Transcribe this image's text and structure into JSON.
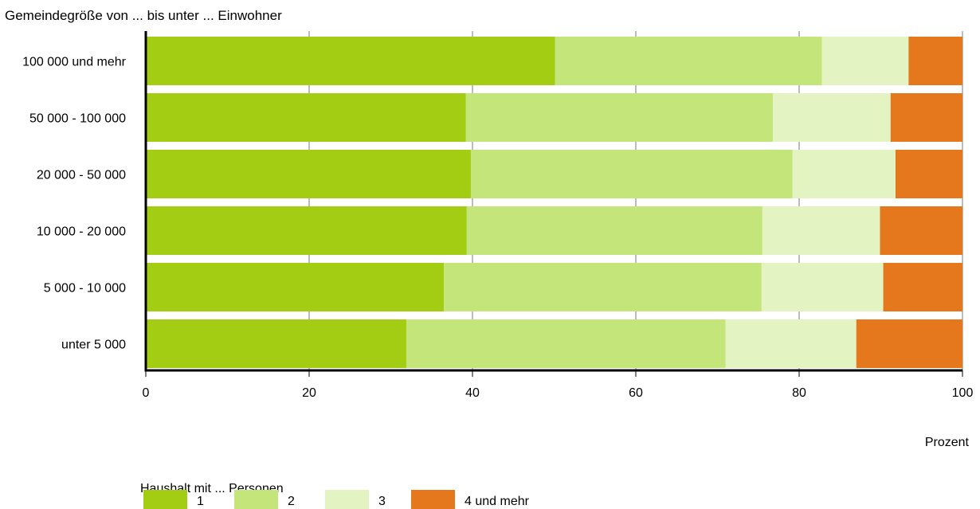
{
  "chart_data": {
    "type": "bar",
    "orientation": "horizontal",
    "stacked": true,
    "ylabel": "Gemeindegröße von ... bis unter ... Einwohner",
    "xlabel": "Prozent",
    "xlim": [
      0,
      100
    ],
    "xticks": [
      0,
      20,
      40,
      60,
      80,
      100
    ],
    "grid": true,
    "legend_title": "Haushalt mit ... Personen",
    "legend_position": "bottom",
    "categories": [
      "100 000 und mehr",
      "50 000 - 100 000",
      "20 000 - 50 000",
      "10 000 - 20 000",
      "5 000 - 10 000",
      "unter 5 000"
    ],
    "series": [
      {
        "name": "1",
        "color": "#a2cd12",
        "values": [
          50.1,
          39.2,
          39.8,
          39.3,
          36.5,
          31.9
        ]
      },
      {
        "name": "2",
        "color": "#c4e57a",
        "values": [
          32.7,
          37.6,
          39.4,
          36.2,
          38.9,
          39.1
        ]
      },
      {
        "name": "3",
        "color": "#e3f4c2",
        "values": [
          10.6,
          14.4,
          12.6,
          14.4,
          14.9,
          16.0
        ]
      },
      {
        "name": "4 und mehr",
        "color": "#e5771d",
        "values": [
          6.6,
          8.8,
          8.2,
          10.1,
          9.7,
          13.0
        ]
      }
    ]
  }
}
